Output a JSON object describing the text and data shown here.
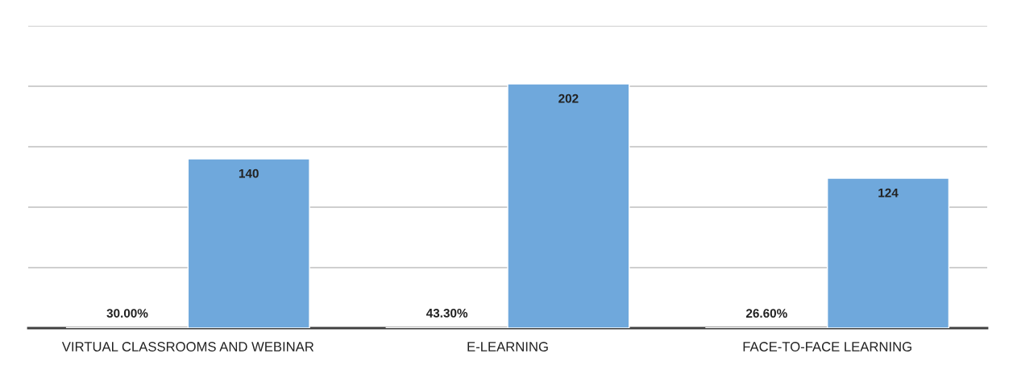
{
  "chart_data": {
    "type": "bar",
    "categories": [
      "VIRTUAL CLASSROOMS AND WEBINAR",
      "E-LEARNING",
      "FACE-TO-FACE LEARNING"
    ],
    "series": [
      {
        "color": "#5b9bd5",
        "values": [
          0.3,
          0.433,
          0.266
        ],
        "value_labels": [
          "30.00%",
          "43.30%",
          "26.60%"
        ]
      },
      {
        "color": "#6fa8dc",
        "values": [
          140,
          202,
          124
        ],
        "value_labels": [
          "140",
          "202",
          "124"
        ]
      }
    ],
    "ylim": [
      0,
      250
    ],
    "yticks": [
      {
        "value": 0,
        "label": null
      },
      {
        "value": 50,
        "label": null
      },
      {
        "value": 100,
        "label": null
      },
      {
        "value": 150,
        "label": null
      },
      {
        "value": 200,
        "label": null
      },
      {
        "value": 250,
        "label": null
      }
    ],
    "tick_labels": "x",
    "grid": "y",
    "legend": false
  }
}
